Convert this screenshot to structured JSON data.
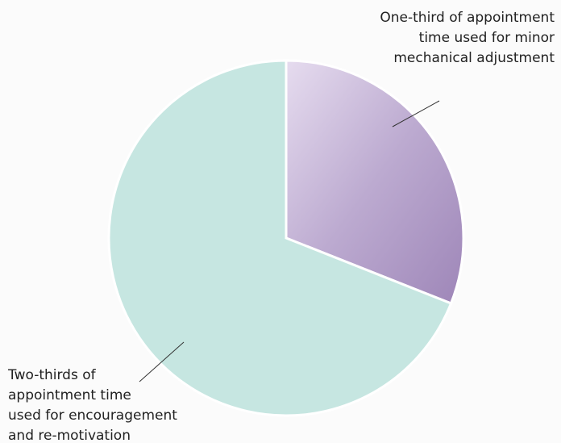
{
  "chart_data": {
    "type": "pie",
    "categories": [
      [
        "One-third of appointment",
        "time used for minor",
        "mechanical adjustment"
      ],
      [
        "Two-thirds of",
        "appointment time",
        "used for encouragement",
        "and re-motivation"
      ]
    ],
    "values": [
      31,
      69
    ],
    "colors": [
      "#bcaad0",
      "#c6e6e1"
    ]
  }
}
